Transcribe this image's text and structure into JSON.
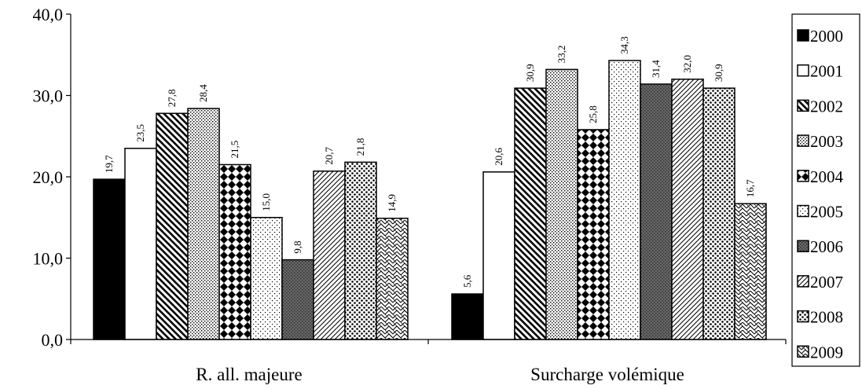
{
  "chart_data": {
    "type": "bar",
    "categories": [
      "R. all. majeure",
      "Surcharge volémique"
    ],
    "series": [
      {
        "name": "2000",
        "values": [
          19.7,
          5.6
        ],
        "labels": [
          "19,7",
          "5,6"
        ],
        "pattern": "solid"
      },
      {
        "name": "2001",
        "values": [
          23.5,
          20.6
        ],
        "labels": [
          "23,5",
          "20,6"
        ],
        "pattern": "white"
      },
      {
        "name": "2002",
        "values": [
          27.8,
          30.9
        ],
        "labels": [
          "27,8",
          "30,9"
        ],
        "pattern": "diag-down-wide"
      },
      {
        "name": "2003",
        "values": [
          28.4,
          33.2
        ],
        "labels": [
          "28,4",
          "33,2"
        ],
        "pattern": "dense-dots"
      },
      {
        "name": "2004",
        "values": [
          21.5,
          25.8
        ],
        "labels": [
          "21,5",
          "25,8"
        ],
        "pattern": "diamond-check"
      },
      {
        "name": "2005",
        "values": [
          15.0,
          34.3
        ],
        "labels": [
          "15,0",
          "34,3"
        ],
        "pattern": "sparse-dots"
      },
      {
        "name": "2006",
        "values": [
          9.8,
          31.4
        ],
        "labels": [
          "9,8",
          "31,4"
        ],
        "pattern": "dark-grey"
      },
      {
        "name": "2007",
        "values": [
          20.7,
          32.0
        ],
        "labels": [
          "20,7",
          "32,0"
        ],
        "pattern": "diag-up-light"
      },
      {
        "name": "2008",
        "values": [
          21.8,
          30.9
        ],
        "labels": [
          "21,8",
          "30,9"
        ],
        "pattern": "big-dots"
      },
      {
        "name": "2009",
        "values": [
          14.9,
          16.7
        ],
        "labels": [
          "14,9",
          "16,7"
        ],
        "pattern": "zigzag"
      }
    ],
    "y_ticks": [
      "0,0",
      "10,0",
      "20,0",
      "30,0",
      "40,0"
    ],
    "ylim": [
      0,
      40
    ],
    "grid": false,
    "legend_position": "right"
  }
}
